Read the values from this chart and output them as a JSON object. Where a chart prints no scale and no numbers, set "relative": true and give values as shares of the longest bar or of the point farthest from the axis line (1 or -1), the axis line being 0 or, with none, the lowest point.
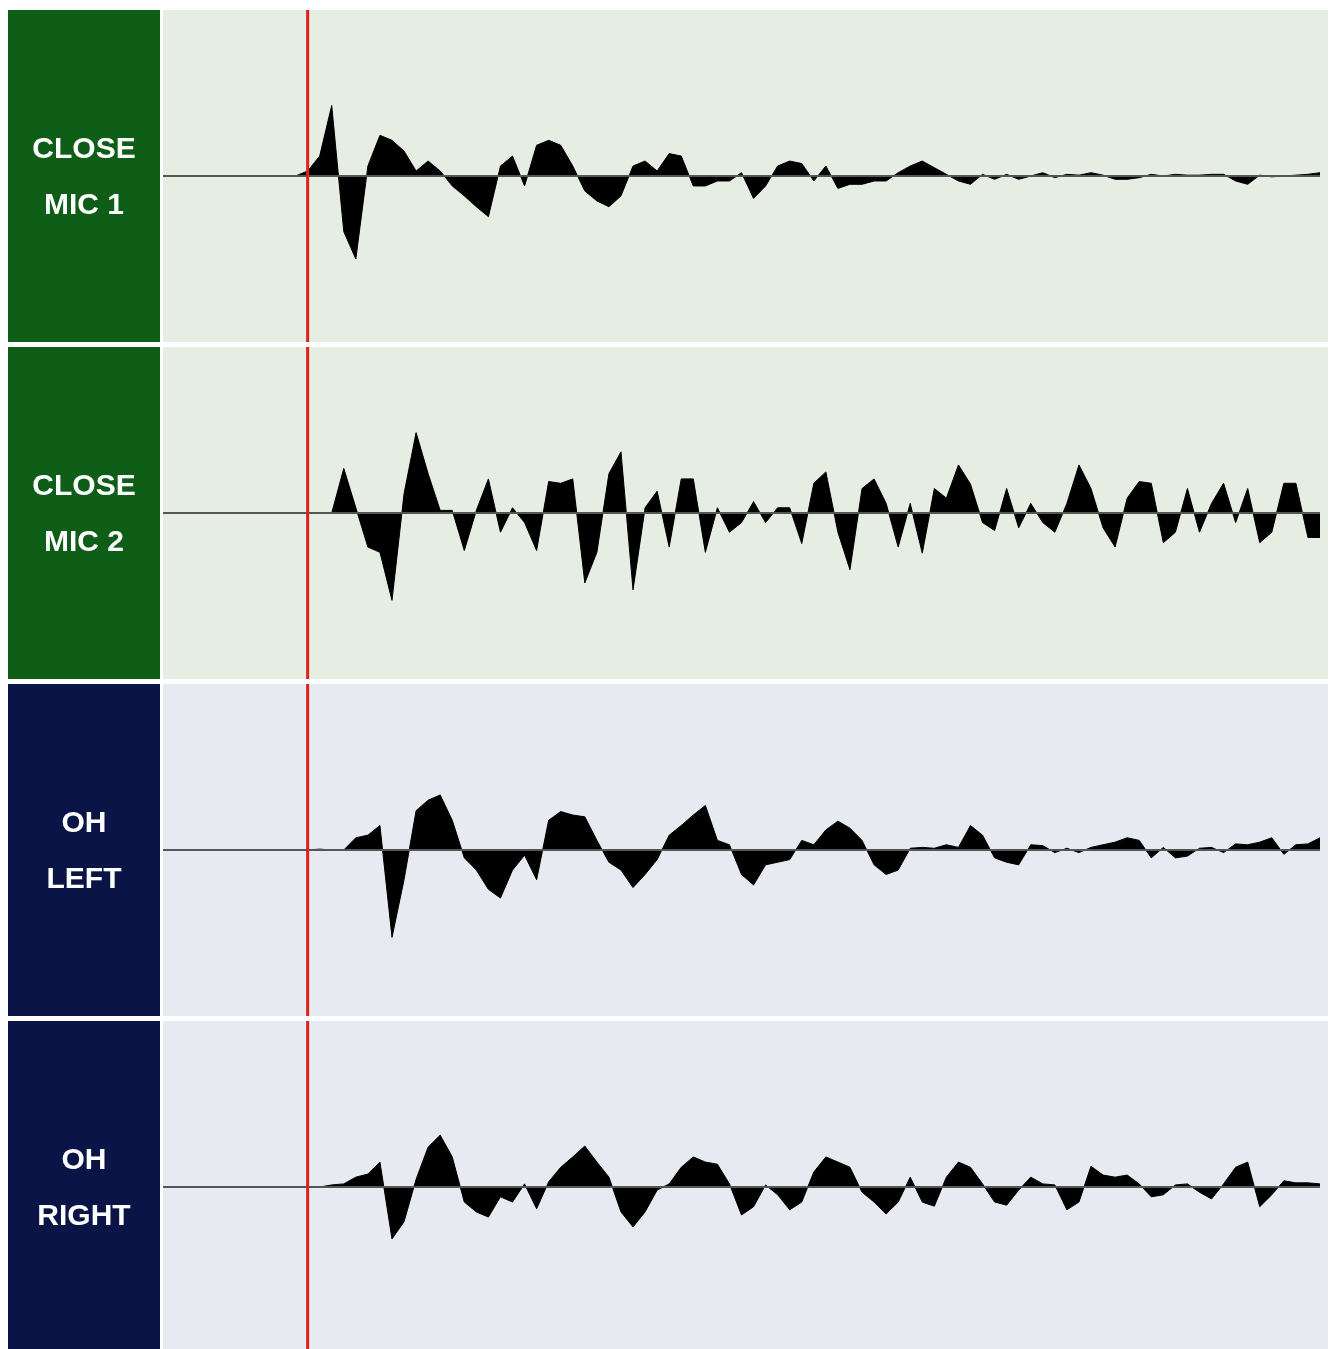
{
  "chart_data": [
    {
      "type": "area",
      "title": "CLOSE MIC 1",
      "relative": true,
      "categories": [
        null,
        null,
        null,
        null,
        null,
        null,
        null,
        null,
        null,
        null,
        null,
        null,
        null,
        null,
        null,
        null,
        null,
        null,
        null,
        null,
        null,
        null,
        null,
        null,
        null,
        null,
        null,
        null,
        null,
        null,
        null,
        null,
        null,
        null,
        null,
        null,
        null,
        null,
        null,
        null,
        null,
        null,
        null,
        null,
        null,
        null,
        null,
        null,
        null,
        null,
        null,
        null,
        null,
        null,
        null,
        null,
        null,
        null,
        null,
        null,
        null,
        null,
        null,
        null,
        null,
        null,
        null,
        null,
        null,
        null,
        null,
        null,
        null,
        null,
        null,
        null,
        null,
        null,
        null,
        null,
        null,
        null,
        null,
        null,
        null,
        null,
        null,
        null,
        null,
        null,
        null,
        null,
        null,
        null,
        null,
        null,
        null
      ],
      "series": [
        {
          "color": "#000000",
          "values": [
            0,
            0,
            0,
            0,
            0,
            0,
            0,
            0,
            0,
            0,
            0,
            0,
            0.06,
            0.24,
            0.85,
            -0.67,
            -1,
            0.12,
            0.49,
            0.43,
            0.3,
            0.06,
            0.18,
            0.06,
            -0.12,
            -0.24,
            -0.37,
            -0.49,
            0.12,
            0.24,
            -0.12,
            0.37,
            0.43,
            0.37,
            0.12,
            -0.18,
            -0.3,
            -0.37,
            -0.24,
            0.12,
            0.18,
            0.06,
            0.27,
            0.24,
            -0.12,
            -0.12,
            -0.06,
            -0.06,
            0.04,
            -0.27,
            -0.12,
            0.12,
            0.18,
            0.15,
            -0.06,
            0.12,
            -0.15,
            -0.1,
            -0.1,
            -0.06,
            -0.06,
            0.04,
            0.12,
            0.18,
            0.1,
            0.02,
            -0.06,
            -0.1,
            0.02,
            -0.04,
            0.02,
            -0.04,
            0,
            0.04,
            -0.02,
            0.02,
            0.01,
            0.04,
            0.01,
            -0.04,
            -0.04,
            -0.02,
            0.02,
            0,
            0.02,
            0.01,
            0.01,
            0.02,
            0.02,
            -0.06,
            -0.1,
            0.01,
            -0.01,
            0,
            0.01,
            0.02,
            0.04
          ]
        }
      ]
    },
    {
      "type": "area",
      "title": "CLOSE MIC 2",
      "relative": true,
      "categories": [
        null,
        null,
        null,
        null,
        null,
        null,
        null,
        null,
        null,
        null,
        null,
        null,
        null,
        null,
        null,
        null,
        null,
        null,
        null,
        null,
        null,
        null,
        null,
        null,
        null,
        null,
        null,
        null,
        null,
        null,
        null,
        null,
        null,
        null,
        null,
        null,
        null,
        null,
        null,
        null,
        null,
        null,
        null,
        null,
        null,
        null,
        null,
        null,
        null,
        null,
        null,
        null,
        null,
        null,
        null,
        null,
        null,
        null,
        null,
        null,
        null,
        null,
        null,
        null,
        null,
        null,
        null,
        null,
        null,
        null,
        null,
        null,
        null,
        null,
        null,
        null,
        null,
        null,
        null,
        null,
        null,
        null,
        null,
        null,
        null,
        null,
        null,
        null,
        null,
        null,
        null,
        null,
        null,
        null,
        null,
        null,
        null
      ],
      "series": [
        {
          "color": "#000000",
          "values": [
            0,
            0,
            0,
            0,
            0,
            0,
            0,
            0,
            0,
            0,
            0,
            0,
            0,
            0,
            0,
            0.51,
            0.06,
            -0.39,
            -0.45,
            -1,
            0.22,
            0.92,
            0.45,
            0.03,
            0.03,
            -0.43,
            0.03,
            0.39,
            -0.22,
            0.06,
            -0.11,
            -0.43,
            0.36,
            0.34,
            0.39,
            -0.8,
            -0.45,
            0.45,
            0.7,
            -0.88,
            0.06,
            0.25,
            -0.39,
            0.39,
            0.39,
            -0.45,
            0.06,
            -0.22,
            -0.11,
            0.13,
            -0.11,
            0.06,
            0.06,
            -0.35,
            0.34,
            0.47,
            -0.22,
            -0.65,
            0.28,
            0.39,
            0.11,
            -0.39,
            0.11,
            -0.46,
            0.28,
            0.17,
            0.55,
            0.33,
            -0.11,
            -0.2,
            0.28,
            -0.17,
            0.11,
            -0.11,
            -0.22,
            0.11,
            0.55,
            0.28,
            -0.17,
            -0.39,
            0.17,
            0.36,
            0.34,
            -0.34,
            -0.22,
            0.28,
            -0.22,
            0.11,
            0.34,
            -0.11,
            0.28,
            -0.34,
            -0.22,
            0.34,
            0.34,
            -0.28,
            -0.28
          ]
        }
      ]
    },
    {
      "type": "area",
      "title": "OH LEFT",
      "relative": true,
      "categories": [
        null,
        null,
        null,
        null,
        null,
        null,
        null,
        null,
        null,
        null,
        null,
        null,
        null,
        null,
        null,
        null,
        null,
        null,
        null,
        null,
        null,
        null,
        null,
        null,
        null,
        null,
        null,
        null,
        null,
        null,
        null,
        null,
        null,
        null,
        null,
        null,
        null,
        null,
        null,
        null,
        null,
        null,
        null,
        null,
        null,
        null,
        null,
        null,
        null,
        null,
        null,
        null,
        null,
        null,
        null,
        null,
        null,
        null,
        null,
        null,
        null,
        null,
        null,
        null,
        null,
        null,
        null,
        null,
        null,
        null,
        null,
        null,
        null,
        null,
        null,
        null,
        null,
        null,
        null,
        null,
        null,
        null,
        null,
        null,
        null,
        null,
        null,
        null,
        null,
        null,
        null,
        null,
        null,
        null,
        null,
        null,
        null
      ],
      "series": [
        {
          "color": "#000000",
          "values": [
            0,
            0,
            0,
            0,
            0,
            0,
            0,
            0,
            0,
            0,
            0,
            0,
            0,
            0.01,
            0,
            0,
            0.14,
            0.17,
            0.28,
            -1,
            -0.34,
            0.45,
            0.57,
            0.63,
            0.34,
            -0.09,
            -0.23,
            -0.45,
            -0.55,
            -0.23,
            -0.06,
            -0.34,
            0.34,
            0.44,
            0.4,
            0.38,
            0.11,
            -0.14,
            -0.23,
            -0.43,
            -0.28,
            -0.11,
            0.17,
            0.28,
            0.4,
            0.51,
            0.11,
            0.06,
            -0.28,
            -0.4,
            -0.17,
            -0.14,
            -0.11,
            0.11,
            0.06,
            0.23,
            0.33,
            0.25,
            0.11,
            -0.17,
            -0.28,
            -0.23,
            0.02,
            0.03,
            0.02,
            0.06,
            0.03,
            0.28,
            0.17,
            -0.09,
            -0.14,
            -0.17,
            0.06,
            0.05,
            -0.03,
            0.02,
            -0.03,
            0.03,
            0.06,
            0.09,
            0.14,
            0.11,
            -0.09,
            0.03,
            -0.09,
            -0.07,
            0.02,
            0.03,
            -0.03,
            0.07,
            0.06,
            0.09,
            0.14,
            -0.05,
            0.06,
            0.07,
            0.14
          ]
        }
      ]
    },
    {
      "type": "area",
      "title": "OH RIGHT",
      "relative": true,
      "categories": [
        null,
        null,
        null,
        null,
        null,
        null,
        null,
        null,
        null,
        null,
        null,
        null,
        null,
        null,
        null,
        null,
        null,
        null,
        null,
        null,
        null,
        null,
        null,
        null,
        null,
        null,
        null,
        null,
        null,
        null,
        null,
        null,
        null,
        null,
        null,
        null,
        null,
        null,
        null,
        null,
        null,
        null,
        null,
        null,
        null,
        null,
        null,
        null,
        null,
        null,
        null,
        null,
        null,
        null,
        null,
        null,
        null,
        null,
        null,
        null,
        null,
        null,
        null,
        null,
        null,
        null,
        null,
        null,
        null,
        null,
        null,
        null,
        null,
        null,
        null,
        null,
        null,
        null,
        null,
        null,
        null,
        null,
        null,
        null,
        null,
        null,
        null,
        null,
        null,
        null,
        null,
        null,
        null,
        null,
        null,
        null,
        null
      ],
      "series": [
        {
          "color": "#000000",
          "values": [
            0,
            0,
            0,
            0,
            0,
            0,
            0,
            0,
            0,
            0,
            0,
            0,
            0,
            0,
            0.04,
            0.06,
            0.19,
            0.25,
            0.48,
            -1,
            -0.67,
            0.15,
            0.77,
            1,
            0.58,
            -0.29,
            -0.48,
            -0.58,
            -0.19,
            -0.29,
            0.06,
            -0.42,
            0.1,
            0.38,
            0.58,
            0.79,
            0.48,
            0.19,
            -0.48,
            -0.77,
            -0.48,
            -0.06,
            0.06,
            0.38,
            0.58,
            0.48,
            0.44,
            0.06,
            -0.54,
            -0.38,
            0.04,
            -0.15,
            -0.44,
            -0.29,
            0.29,
            0.58,
            0.48,
            0.38,
            -0.1,
            -0.29,
            -0.52,
            -0.29,
            0.19,
            -0.29,
            -0.37,
            0.19,
            0.48,
            0.38,
            0.06,
            -0.29,
            -0.35,
            -0.06,
            0.19,
            0.06,
            0.04,
            -0.44,
            -0.29,
            0.4,
            0.23,
            0.19,
            0.23,
            0.06,
            -0.19,
            -0.15,
            0.04,
            0.06,
            -0.1,
            -0.23,
            0.06,
            0.38,
            0.48,
            -0.38,
            -0.15,
            0.12,
            0.08,
            0.08,
            0.06
          ]
        }
      ]
    }
  ]
}
